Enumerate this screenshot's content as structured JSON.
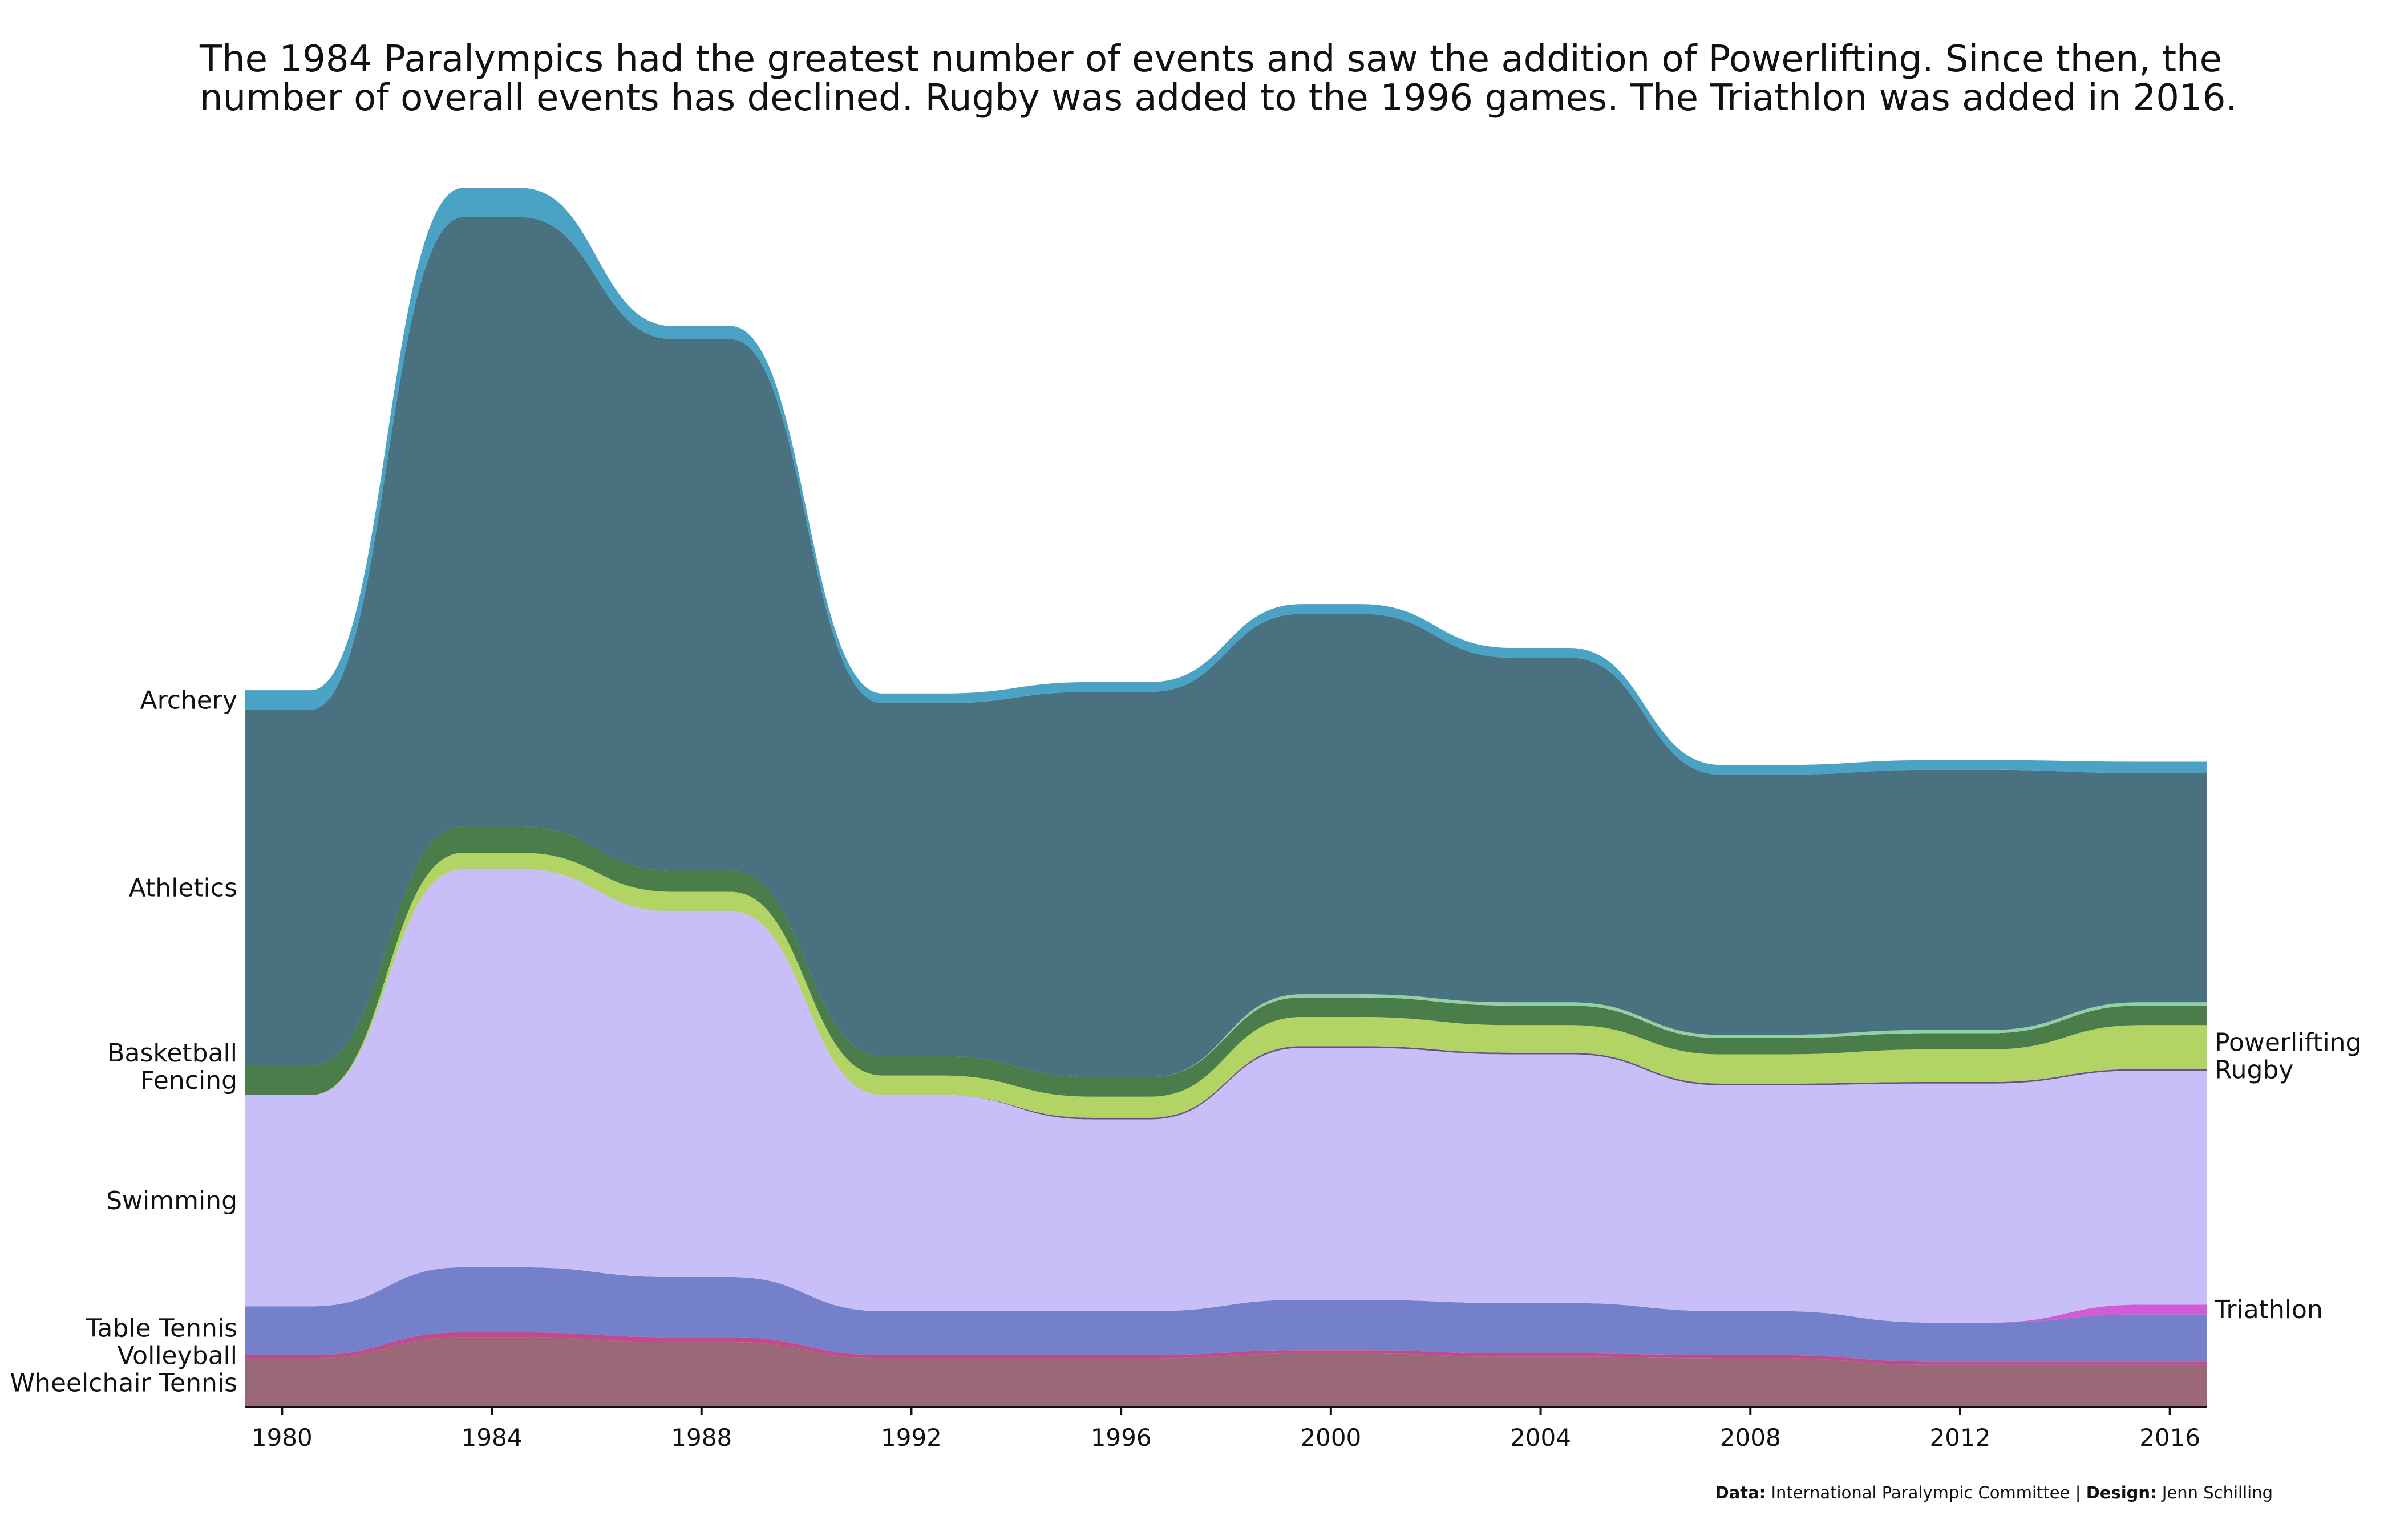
{
  "chart_data": {
    "type": "area",
    "subtype": "stacked-streamgraph",
    "title": "The 1984 Paralympics had the greatest number of events and saw the addition of Powerlifting. Since then, the number of overall events has declined. Rugby was added to the 1996 games. The Triathlon was added in 2016.",
    "caption": {
      "data_label": "Data:",
      "data_source": "International Paralympic Committee",
      "separator": " | ",
      "design_label": "Design:",
      "design_credit": "Jenn Schilling"
    },
    "x": [
      1980,
      1984,
      1988,
      1992,
      1996,
      2000,
      2004,
      2008,
      2012,
      2016
    ],
    "x_ticks": [
      "1980",
      "1984",
      "1988",
      "1992",
      "1996",
      "2000",
      "2004",
      "2008",
      "2012",
      "2016"
    ],
    "xlim": [
      1979.3,
      2016.7
    ],
    "ylim": [
      0,
      720
    ],
    "grid": false,
    "series": [
      {
        "name": "Wheelchair Tennis",
        "color": "#9b6878",
        "values": [
          30,
          43,
          40,
          30,
          30,
          33,
          31,
          30,
          26,
          26
        ],
        "label_side": "left"
      },
      {
        "name": "Volleyball",
        "color": "#c04a8c",
        "values": [
          2,
          3,
          3,
          2,
          2,
          2,
          2,
          2,
          2,
          2
        ],
        "label_side": "left"
      },
      {
        "name": "Table Tennis",
        "color": "#7480c9",
        "values": [
          30,
          40,
          37,
          27,
          27,
          31,
          31,
          27,
          24,
          29
        ],
        "label_side": "left"
      },
      {
        "name": "Triathlon",
        "color": "#d05ad8",
        "values": [
          0,
          0,
          0,
          0,
          0,
          0,
          0,
          0,
          0,
          6
        ],
        "label_side": "right"
      },
      {
        "name": "Swimming",
        "color": "#c8bff8",
        "values": [
          130,
          245,
          225,
          133,
          118,
          155,
          153,
          139,
          147,
          144
        ],
        "label_side": "left"
      },
      {
        "name": "Rugby",
        "color": "#6a4f8a",
        "values": [
          0,
          0,
          0,
          0,
          1,
          1,
          1,
          1,
          1,
          1
        ],
        "label_side": "right"
      },
      {
        "name": "Powerlifting",
        "color": "#b1d464",
        "values": [
          0,
          10,
          12,
          12,
          13,
          18,
          17,
          18,
          20,
          27
        ],
        "label_side": "right"
      },
      {
        "name": "Fencing",
        "color": "#4a7d4a",
        "values": [
          18,
          16,
          13,
          12,
          12,
          12,
          12,
          10,
          10,
          12
        ],
        "label_side": "left"
      },
      {
        "name": "Basketball",
        "color": "#92d0a6",
        "values": [
          0,
          0,
          0,
          0,
          0,
          2,
          2,
          2,
          2,
          2
        ],
        "label_side": "left"
      },
      {
        "name": "Athletics",
        "color": "#4a717f",
        "values": [
          219,
          375,
          327,
          217,
          237,
          234,
          212,
          160,
          160,
          141
        ],
        "label_side": "left"
      },
      {
        "name": "Archery",
        "color": "#4aa2c5",
        "values": [
          12,
          18,
          8,
          6,
          6,
          6,
          6,
          6,
          6,
          7
        ],
        "label_side": "left"
      }
    ]
  }
}
